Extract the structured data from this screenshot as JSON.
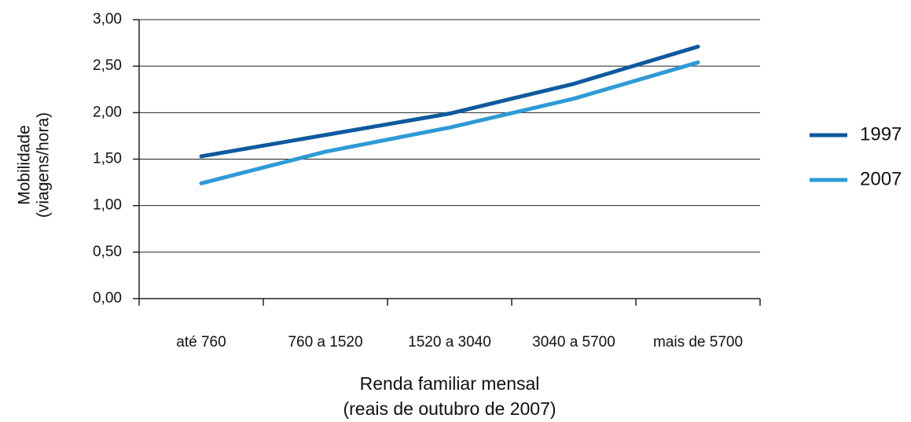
{
  "chart_data": {
    "type": "line",
    "categories": [
      "até 760",
      "760 a 1520",
      "1520 a 3040",
      "3040 a 5700",
      "mais de 5700"
    ],
    "series": [
      {
        "name": "1997",
        "color": "#0e5a9e",
        "values": [
          1.53,
          1.76,
          1.99,
          2.31,
          2.71
        ]
      },
      {
        "name": "2007",
        "color": "#2e9ad6",
        "values": [
          1.24,
          1.58,
          1.84,
          2.15,
          2.54
        ]
      }
    ],
    "ylim": [
      0,
      3
    ],
    "yticks": [
      {
        "value": 0,
        "label": "0,00"
      },
      {
        "value": 0.5,
        "label": "0,50"
      },
      {
        "value": 1,
        "label": "1,00"
      },
      {
        "value": 1.5,
        "label": "1,50"
      },
      {
        "value": 2,
        "label": "2,00"
      },
      {
        "value": 2.5,
        "label": "2,50"
      },
      {
        "value": 3,
        "label": "3,00"
      }
    ],
    "y_label": [
      "Mobilidade",
      "(viagens/hora)"
    ],
    "x_label": [
      "Renda familiar mensal",
      "(reais de outubro de 2007)"
    ],
    "grid": true,
    "legend": "right"
  }
}
